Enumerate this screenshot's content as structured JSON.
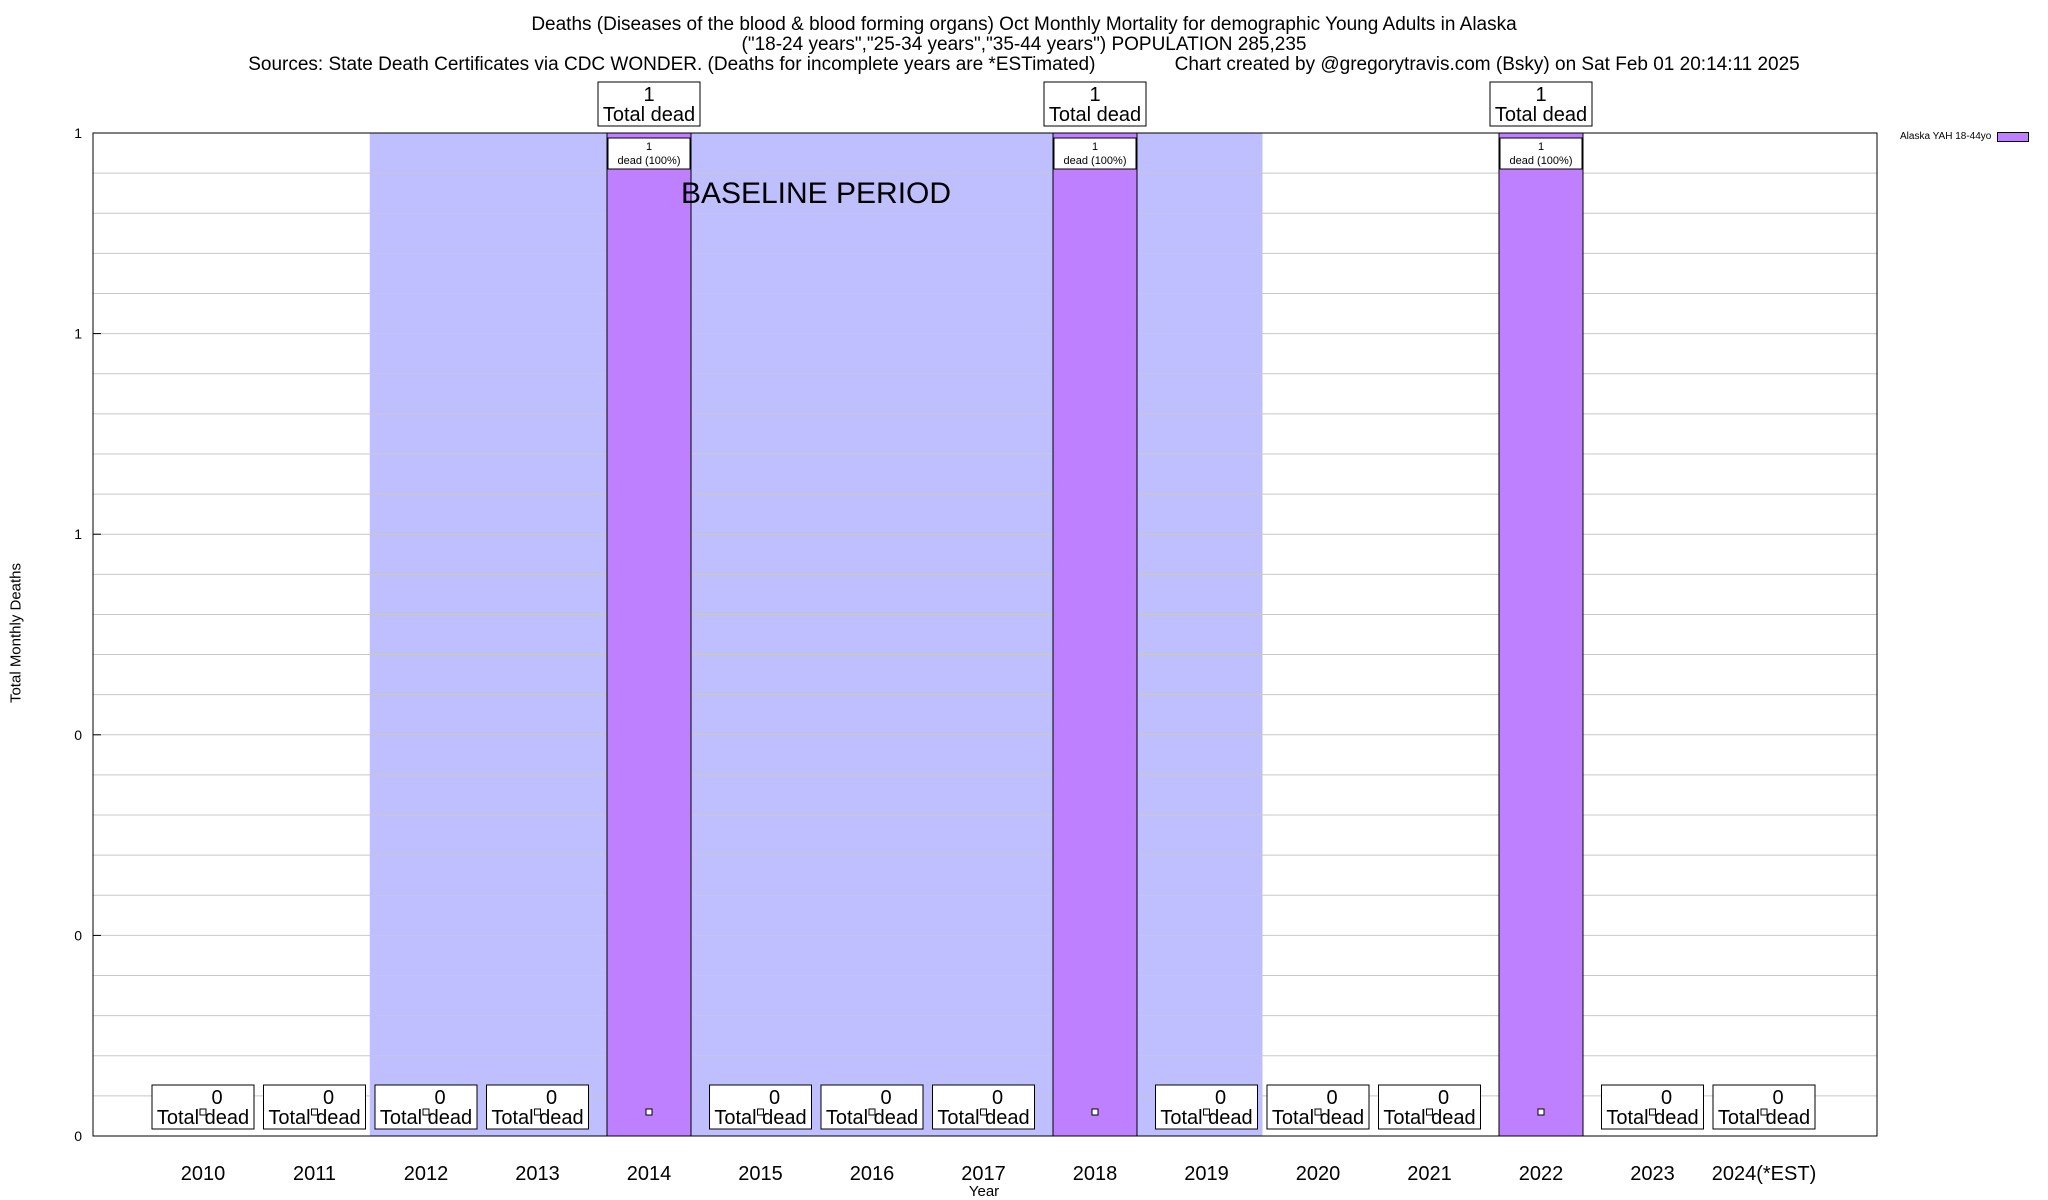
{
  "title": {
    "line1": "Deaths (Diseases of the blood & blood forming organs) Oct Monthly Mortality for demographic Young Adults in Alaska",
    "line2": "(\"18-24 years\",\"25-34 years\",\"35-44 years\") POPULATION 285,235",
    "line3": "Sources: State Death Certificates via CDC WONDER. (Deaths for incomplete years are *ESTimated)               Chart created by @gregorytravis.com (Bsky) on Sat Feb 01 20:14:11 2025"
  },
  "legend": {
    "label": "Alaska YAH 18-44yo"
  },
  "colors": {
    "bar": "#bf80ff",
    "baseline": "#bfbfff"
  },
  "chart_data": {
    "type": "bar",
    "title": "Deaths (Diseases of the blood & blood forming organs) Oct Monthly Mortality for demographic Young Adults in Alaska",
    "xlabel": "Year",
    "ylabel": "Total Monthly Deaths",
    "ylim": [
      0,
      1
    ],
    "y_tick_labels": [
      "0",
      "0",
      "0",
      "1",
      "1",
      "1"
    ],
    "grid": true,
    "legend_position": "top-right",
    "categories": [
      "2010",
      "2011",
      "2012",
      "2013",
      "2014",
      "2015",
      "2016",
      "2017",
      "2018",
      "2019",
      "2020",
      "2021",
      "2022",
      "2023",
      "2024(*EST)"
    ],
    "series": [
      {
        "name": "Alaska YAH 18-44yo",
        "values": [
          0,
          0,
          0,
          0,
          1,
          0,
          0,
          0,
          1,
          0,
          0,
          0,
          1,
          0,
          0
        ]
      }
    ],
    "total_label_suffix": "Total dead",
    "in_bar_label_suffix": "dead (100%)",
    "annotations": [
      {
        "text": "BASELINE PERIOD",
        "span": [
          "2012",
          "2019"
        ]
      }
    ]
  }
}
